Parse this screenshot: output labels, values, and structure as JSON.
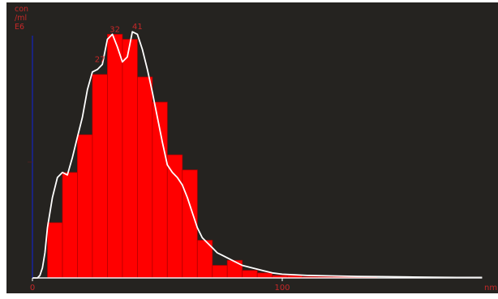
{
  "chart_data": {
    "type": "bar",
    "unit_label_lines": [
      "con",
      "/ml",
      "E6"
    ],
    "x_unit": "nm",
    "x_ticks": [
      0,
      100
    ],
    "xlim": [
      0,
      180
    ],
    "ylim": [
      0,
      100
    ],
    "bin_width": 6,
    "bin_starts": [
      6,
      12,
      18,
      24,
      30,
      36,
      42,
      48,
      54,
      60,
      66,
      72,
      78,
      84,
      90,
      96,
      102,
      108,
      114,
      120,
      126,
      132
    ],
    "values": [
      22,
      42,
      57,
      81,
      97,
      95,
      80,
      70,
      49,
      43,
      15,
      5,
      7,
      3,
      2,
      1,
      1,
      0.5,
      0.5,
      0.5,
      0.5,
      0.5
    ],
    "series": [
      {
        "name": "",
        "type": "line",
        "x": [
          0,
          1,
          2,
          3,
          4,
          5,
          6,
          8,
          10,
          12,
          14,
          16,
          18,
          20,
          22,
          24,
          26,
          28,
          30,
          32,
          34,
          36,
          38,
          40,
          42,
          44,
          46,
          48,
          50,
          52,
          54,
          56,
          58,
          60,
          62,
          64,
          66,
          68,
          70,
          72,
          74,
          76,
          78,
          80,
          84,
          88,
          92,
          96,
          100,
          110,
          120,
          130,
          140,
          150,
          160,
          170,
          180
        ],
        "values": [
          0,
          0,
          0,
          1,
          4,
          10,
          20,
          32,
          40,
          42,
          41,
          48,
          56,
          64,
          75,
          82,
          83,
          85,
          95,
          97,
          92,
          86,
          88,
          98,
          97,
          91,
          83,
          74,
          64,
          54,
          45,
          42,
          40,
          37,
          32,
          26,
          20,
          16,
          14,
          12,
          10,
          9,
          8,
          7,
          5,
          4,
          3,
          2,
          1.5,
          1,
          0.8,
          0.6,
          0.5,
          0.4,
          0.3,
          0.2,
          0.2
        ]
      }
    ],
    "peak_annotations": [
      {
        "x": 27,
        "y": 85,
        "label": "27"
      },
      {
        "x": 33,
        "y": 97,
        "label": "32"
      },
      {
        "x": 42,
        "y": 98,
        "label": "41"
      }
    ],
    "colors": {
      "background": "#252320",
      "bar_fill": "#ff0000",
      "bar_stroke": "#b00000",
      "curve": "#ffffff",
      "axis_y": "#1a237e",
      "axis_x": "#f0f0f0",
      "label": "#c62828"
    }
  }
}
